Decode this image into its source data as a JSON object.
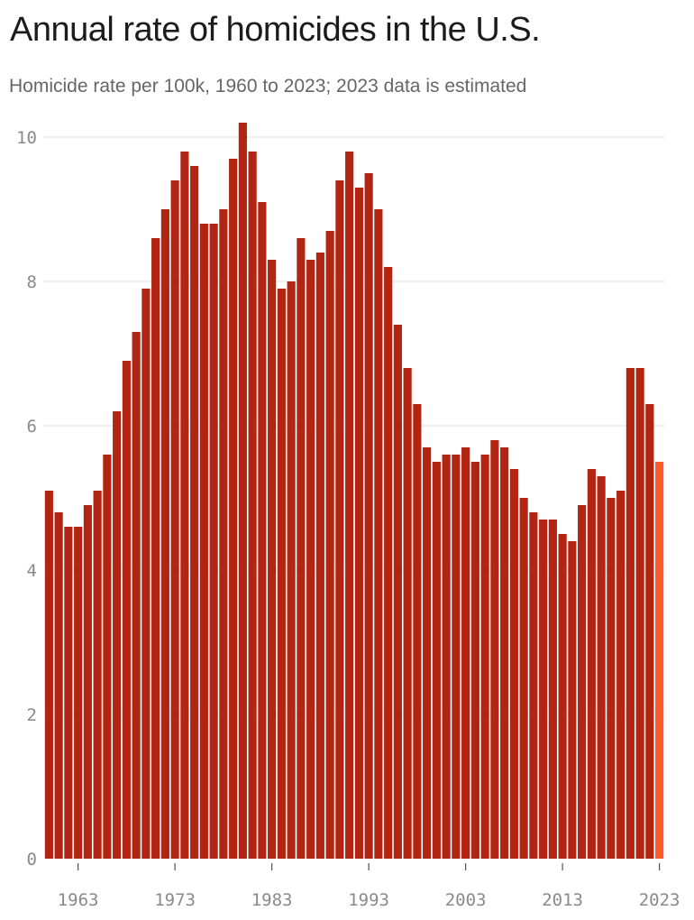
{
  "title": "Annual rate of homicides in the U.S.",
  "subtitle": "Homicide rate per 100k, 1960 to 2023; 2023 data is estimated",
  "colors": {
    "bar": "#b22512",
    "estimated_bar": "#ff5a2d",
    "gridline": "#dcdcdc",
    "tick_label": "#8a8a8a"
  },
  "chart_data": {
    "type": "bar",
    "title": "Annual rate of homicides in the U.S.",
    "subtitle": "Homicide rate per 100k, 1960 to 2023; 2023 data is estimated",
    "xlabel": "",
    "ylabel": "",
    "ylim": [
      0,
      10
    ],
    "grid": true,
    "y_ticks": [
      0,
      2,
      4,
      6,
      8,
      10
    ],
    "x_tick_labels": [
      "1963",
      "1973",
      "1983",
      "1993",
      "2003",
      "2013",
      "2023"
    ],
    "categories": [
      1960,
      1961,
      1962,
      1963,
      1964,
      1965,
      1966,
      1967,
      1968,
      1969,
      1970,
      1971,
      1972,
      1973,
      1974,
      1975,
      1976,
      1977,
      1978,
      1979,
      1980,
      1981,
      1982,
      1983,
      1984,
      1985,
      1986,
      1987,
      1988,
      1989,
      1990,
      1991,
      1992,
      1993,
      1994,
      1995,
      1996,
      1997,
      1998,
      1999,
      2000,
      2001,
      2002,
      2003,
      2004,
      2005,
      2006,
      2007,
      2008,
      2009,
      2010,
      2011,
      2012,
      2013,
      2014,
      2015,
      2016,
      2017,
      2018,
      2019,
      2020,
      2021,
      2022,
      2023
    ],
    "values": [
      5.1,
      4.8,
      4.6,
      4.6,
      4.9,
      5.1,
      5.6,
      6.2,
      6.9,
      7.3,
      7.9,
      8.6,
      9.0,
      9.4,
      9.8,
      9.6,
      8.8,
      8.8,
      9.0,
      9.7,
      10.2,
      9.8,
      9.1,
      8.3,
      7.9,
      8.0,
      8.6,
      8.3,
      8.4,
      8.7,
      9.4,
      9.8,
      9.3,
      9.5,
      9.0,
      8.2,
      7.4,
      6.8,
      6.3,
      5.7,
      5.5,
      5.6,
      5.6,
      5.7,
      5.5,
      5.6,
      5.8,
      5.7,
      5.4,
      5.0,
      4.8,
      4.7,
      4.7,
      4.5,
      4.4,
      4.9,
      5.4,
      5.3,
      5.0,
      5.1,
      6.8,
      6.8,
      6.3,
      5.5
    ],
    "estimated": [
      2023
    ]
  }
}
